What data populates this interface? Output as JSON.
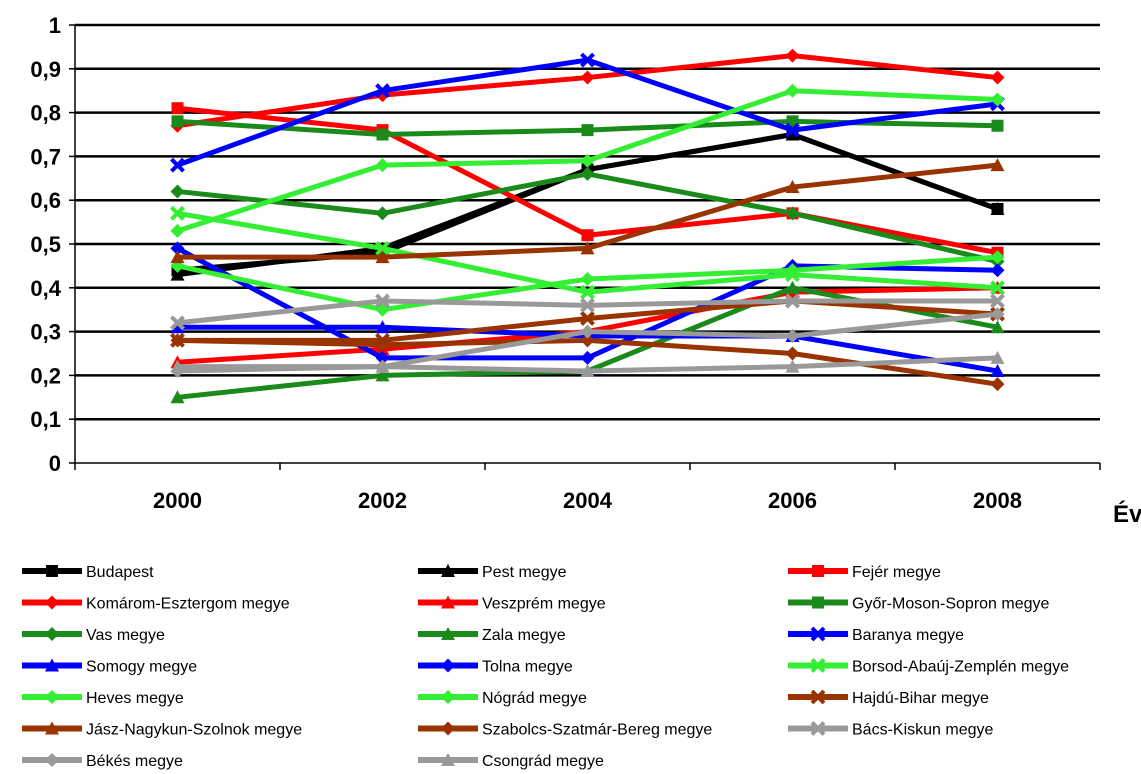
{
  "chart_data": {
    "type": "line",
    "title": "",
    "xlabel": "Év",
    "ylabel": "",
    "x": [
      2000,
      2002,
      2004,
      2006,
      2008
    ],
    "x_tick_labels": [
      "2000",
      "2002",
      "2004",
      "2006",
      "2008"
    ],
    "ylim": [
      0,
      1
    ],
    "y_ticks": [
      0,
      0.1,
      0.2,
      0.3,
      0.4,
      0.5,
      0.6,
      0.7,
      0.8,
      0.9,
      1
    ],
    "y_tick_labels": [
      "0",
      "0,1",
      "0,2",
      "0,3",
      "0,4",
      "0,5",
      "0,6",
      "0,7",
      "0,8",
      "0,9",
      "1"
    ],
    "grid": true,
    "legend_position": "bottom",
    "series": [
      {
        "name": "Budapest",
        "color": "#000000",
        "marker": "square",
        "values": [
          0.44,
          0.48,
          0.67,
          0.75,
          0.58
        ]
      },
      {
        "name": "Pest megye",
        "color": "#000000",
        "marker": "triangle",
        "values": [
          0.43,
          0.49,
          0.67,
          0.75,
          0.58
        ]
      },
      {
        "name": "Fejér megye",
        "color": "#ff0000",
        "marker": "square",
        "values": [
          0.81,
          0.76,
          0.52,
          0.57,
          0.48
        ]
      },
      {
        "name": "Komárom-Esztergom megye",
        "color": "#ff0000",
        "marker": "diamond",
        "values": [
          0.77,
          0.84,
          0.88,
          0.93,
          0.88
        ]
      },
      {
        "name": "Veszprém megye",
        "color": "#ff0000",
        "marker": "triangle",
        "values": [
          0.23,
          0.26,
          0.3,
          0.39,
          0.4
        ]
      },
      {
        "name": "Győr-Moson-Sopron megye",
        "color": "#1a8a1a",
        "marker": "square",
        "values": [
          0.78,
          0.75,
          0.76,
          0.78,
          0.77
        ]
      },
      {
        "name": "Vas megye",
        "color": "#1a8a1a",
        "marker": "diamond",
        "values": [
          0.62,
          0.57,
          0.66,
          0.57,
          0.46
        ]
      },
      {
        "name": "Zala megye",
        "color": "#1a8a1a",
        "marker": "triangle",
        "values": [
          0.15,
          0.2,
          0.21,
          0.4,
          0.31
        ]
      },
      {
        "name": "Baranya megye",
        "color": "#0000ff",
        "marker": "x",
        "values": [
          0.68,
          0.85,
          0.92,
          0.76,
          0.82
        ]
      },
      {
        "name": "Somogy megye",
        "color": "#0000ff",
        "marker": "triangle",
        "values": [
          0.31,
          0.31,
          0.29,
          0.29,
          0.21
        ]
      },
      {
        "name": "Tolna megye",
        "color": "#0000ff",
        "marker": "diamond",
        "values": [
          0.49,
          0.24,
          0.24,
          0.45,
          0.44
        ]
      },
      {
        "name": "Borsod-Abaúj-Zemplén megye",
        "color": "#33ee33",
        "marker": "x",
        "values": [
          0.57,
          0.49,
          0.39,
          0.43,
          0.4
        ]
      },
      {
        "name": "Heves megye",
        "color": "#33ee33",
        "marker": "diamond",
        "values": [
          0.53,
          0.68,
          0.69,
          0.85,
          0.83
        ]
      },
      {
        "name": "Nógrád megye",
        "color": "#33ee33",
        "marker": "diamond",
        "values": [
          0.45,
          0.35,
          0.42,
          0.44,
          0.47
        ]
      },
      {
        "name": "Hajdú-Bihar megye",
        "color": "#993300",
        "marker": "x",
        "values": [
          0.28,
          0.28,
          0.33,
          0.37,
          0.34
        ]
      },
      {
        "name": "Jász-Nagykun-Szolnok megye",
        "color": "#993300",
        "marker": "triangle",
        "values": [
          0.47,
          0.47,
          0.49,
          0.63,
          0.68
        ]
      },
      {
        "name": "Szabolcs-Szatmár-Bereg megye",
        "color": "#993300",
        "marker": "diamond",
        "values": [
          0.28,
          0.27,
          0.28,
          0.25,
          0.18
        ]
      },
      {
        "name": "Bács-Kiskun megye",
        "color": "#999999",
        "marker": "x",
        "values": [
          0.32,
          0.37,
          0.36,
          0.37,
          0.37
        ]
      },
      {
        "name": "Békés megye",
        "color": "#999999",
        "marker": "diamond",
        "values": [
          0.21,
          0.22,
          0.3,
          0.29,
          0.34
        ]
      },
      {
        "name": "Csongrád megye",
        "color": "#999999",
        "marker": "triangle",
        "values": [
          0.22,
          0.22,
          0.21,
          0.22,
          0.24
        ]
      }
    ]
  }
}
